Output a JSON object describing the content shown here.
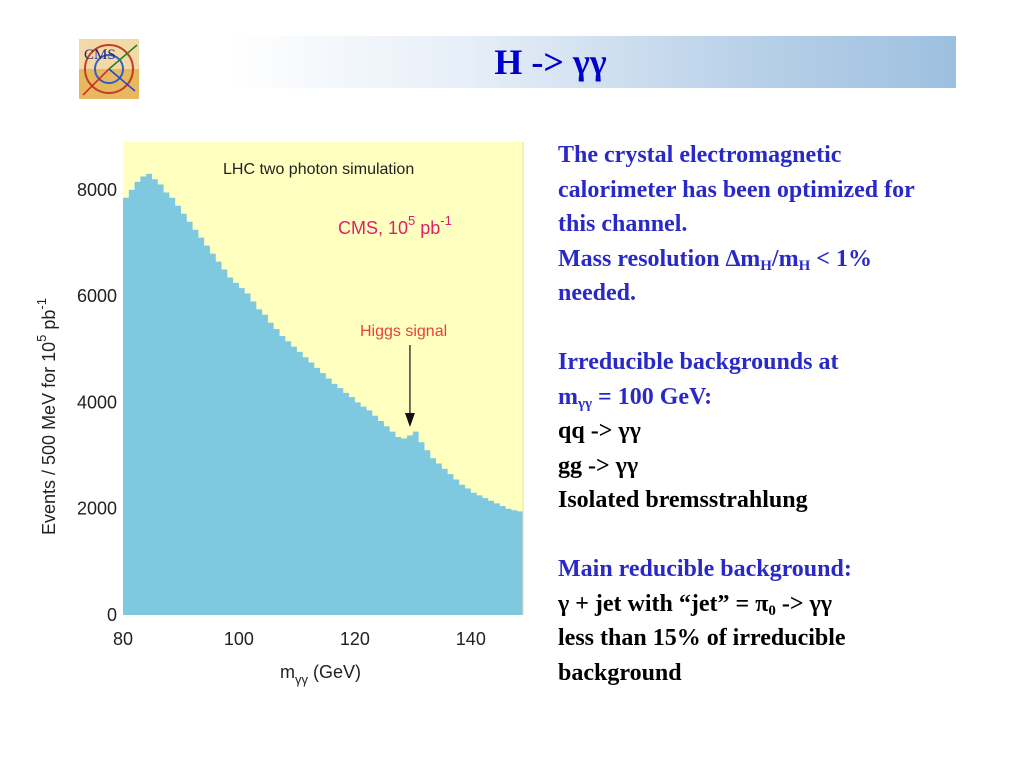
{
  "slide": {
    "title": "H -> γγ",
    "logo_text": "CMS"
  },
  "chart_data": {
    "type": "area",
    "title": "LHC two photon simulation",
    "annotation_lumi_prefix": "CMS, 10",
    "annotation_lumi_exp1": "5",
    "annotation_lumi_unit": " pb",
    "annotation_lumi_exp2": "-1",
    "signal_label": "Higgs  signal",
    "signal_x": 129.5,
    "xlabel_main": "m",
    "xlabel_sub": "γγ",
    "xlabel_unit": "  (GeV)",
    "ylabel_main": "Events / 500 MeV  for 10",
    "ylabel_exp1": "5",
    "ylabel_unit": " pb",
    "ylabel_exp2": "-1",
    "xlim": [
      80,
      149
    ],
    "ylim": [
      0,
      8900
    ],
    "xticks": [
      80,
      100,
      120,
      140
    ],
    "yticks": [
      0,
      2000,
      4000,
      6000,
      8000
    ],
    "grid": false,
    "colors": {
      "background": "#ffffc0",
      "fill": "#7ec8e0",
      "signal_text": "#e8413c",
      "lumi_text": "#e0206e"
    },
    "x": [
      80,
      81,
      82,
      83,
      84,
      85,
      86,
      87,
      88,
      89,
      90,
      91,
      92,
      93,
      94,
      95,
      96,
      97,
      98,
      99,
      100,
      101,
      102,
      103,
      104,
      105,
      106,
      107,
      108,
      109,
      110,
      111,
      112,
      113,
      114,
      115,
      116,
      117,
      118,
      119,
      120,
      121,
      122,
      123,
      124,
      125,
      126,
      127,
      128,
      129,
      130,
      131,
      132,
      133,
      134,
      135,
      136,
      137,
      138,
      139,
      140,
      141,
      142,
      143,
      144,
      145,
      146,
      147,
      148,
      149
    ],
    "y": [
      7850,
      8000,
      8150,
      8250,
      8300,
      8200,
      8100,
      7950,
      7850,
      7700,
      7550,
      7400,
      7250,
      7100,
      6950,
      6800,
      6650,
      6500,
      6350,
      6250,
      6150,
      6050,
      5900,
      5750,
      5650,
      5500,
      5380,
      5250,
      5150,
      5050,
      4950,
      4850,
      4750,
      4650,
      4550,
      4450,
      4350,
      4270,
      4180,
      4100,
      4000,
      3920,
      3850,
      3750,
      3650,
      3550,
      3450,
      3350,
      3320,
      3380,
      3450,
      3250,
      3100,
      2950,
      2850,
      2750,
      2650,
      2550,
      2450,
      2380,
      2300,
      2250,
      2200,
      2150,
      2100,
      2050,
      2000,
      1970,
      1950,
      1900
    ]
  },
  "text_panel": {
    "p1_line1": "The crystal electromagnetic",
    "p1_line2": "calorimeter has been optimized for",
    "p1_line3": "this channel.",
    "p2_a": "Mass resolution ∆m",
    "p2_sub1": "H",
    "p2_b": "/m",
    "p2_sub2": "H",
    "p2_c": " < 1%",
    "p2_line2": "needed.",
    "p3_line1": "Irreducible backgrounds at",
    "p3_a": "m",
    "p3_sub": "γγ",
    "p3_b": " = 100 GeV:",
    "p4_line1": "qq -> γγ",
    "p4_line2": "gg -> γγ",
    "p4_line3": "Isolated bremsstrahlung",
    "p5_line1": "Main reducible background:",
    "p6_a": "γ + jet with “jet” = π",
    "p6_sub": "0",
    "p6_b": " -> γγ",
    "p6_line2": "less than 15% of irreducible",
    "p6_line3": "background"
  }
}
